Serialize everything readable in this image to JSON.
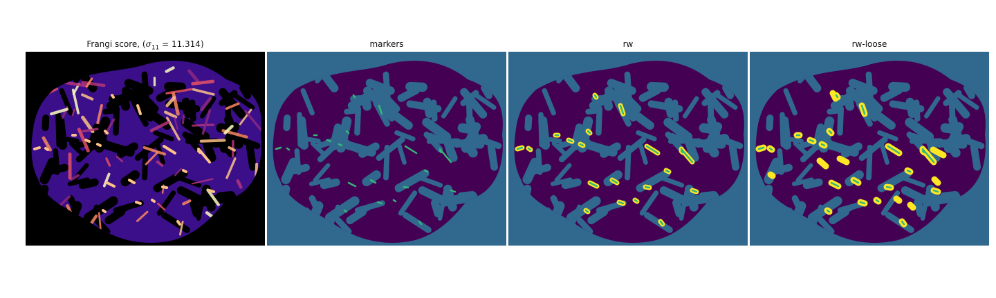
{
  "figure": {
    "panels": [
      {
        "id": "frangi",
        "title_prefix": "Frangi score, (",
        "title_symbol": "σ",
        "title_subscript": "11",
        "title_suffix": " = 11.314)",
        "colormap": "magma",
        "background_color": "#000000"
      },
      {
        "id": "markers",
        "title": "markers",
        "colormap": "viridis",
        "background_color": "#31688e",
        "foreground_color": "#440154",
        "marker_color": "#35b779"
      },
      {
        "id": "rw",
        "title": "rw",
        "colormap": "viridis",
        "background_color": "#31688e",
        "foreground_color": "#440154",
        "segment_color": "#fde725",
        "marker_color": "#35b779"
      },
      {
        "id": "rw-loose",
        "title": "rw-loose",
        "colormap": "viridis",
        "background_color": "#31688e",
        "foreground_color": "#440154",
        "segment_color": "#fde725",
        "marker_color": "#35b779"
      }
    ]
  }
}
